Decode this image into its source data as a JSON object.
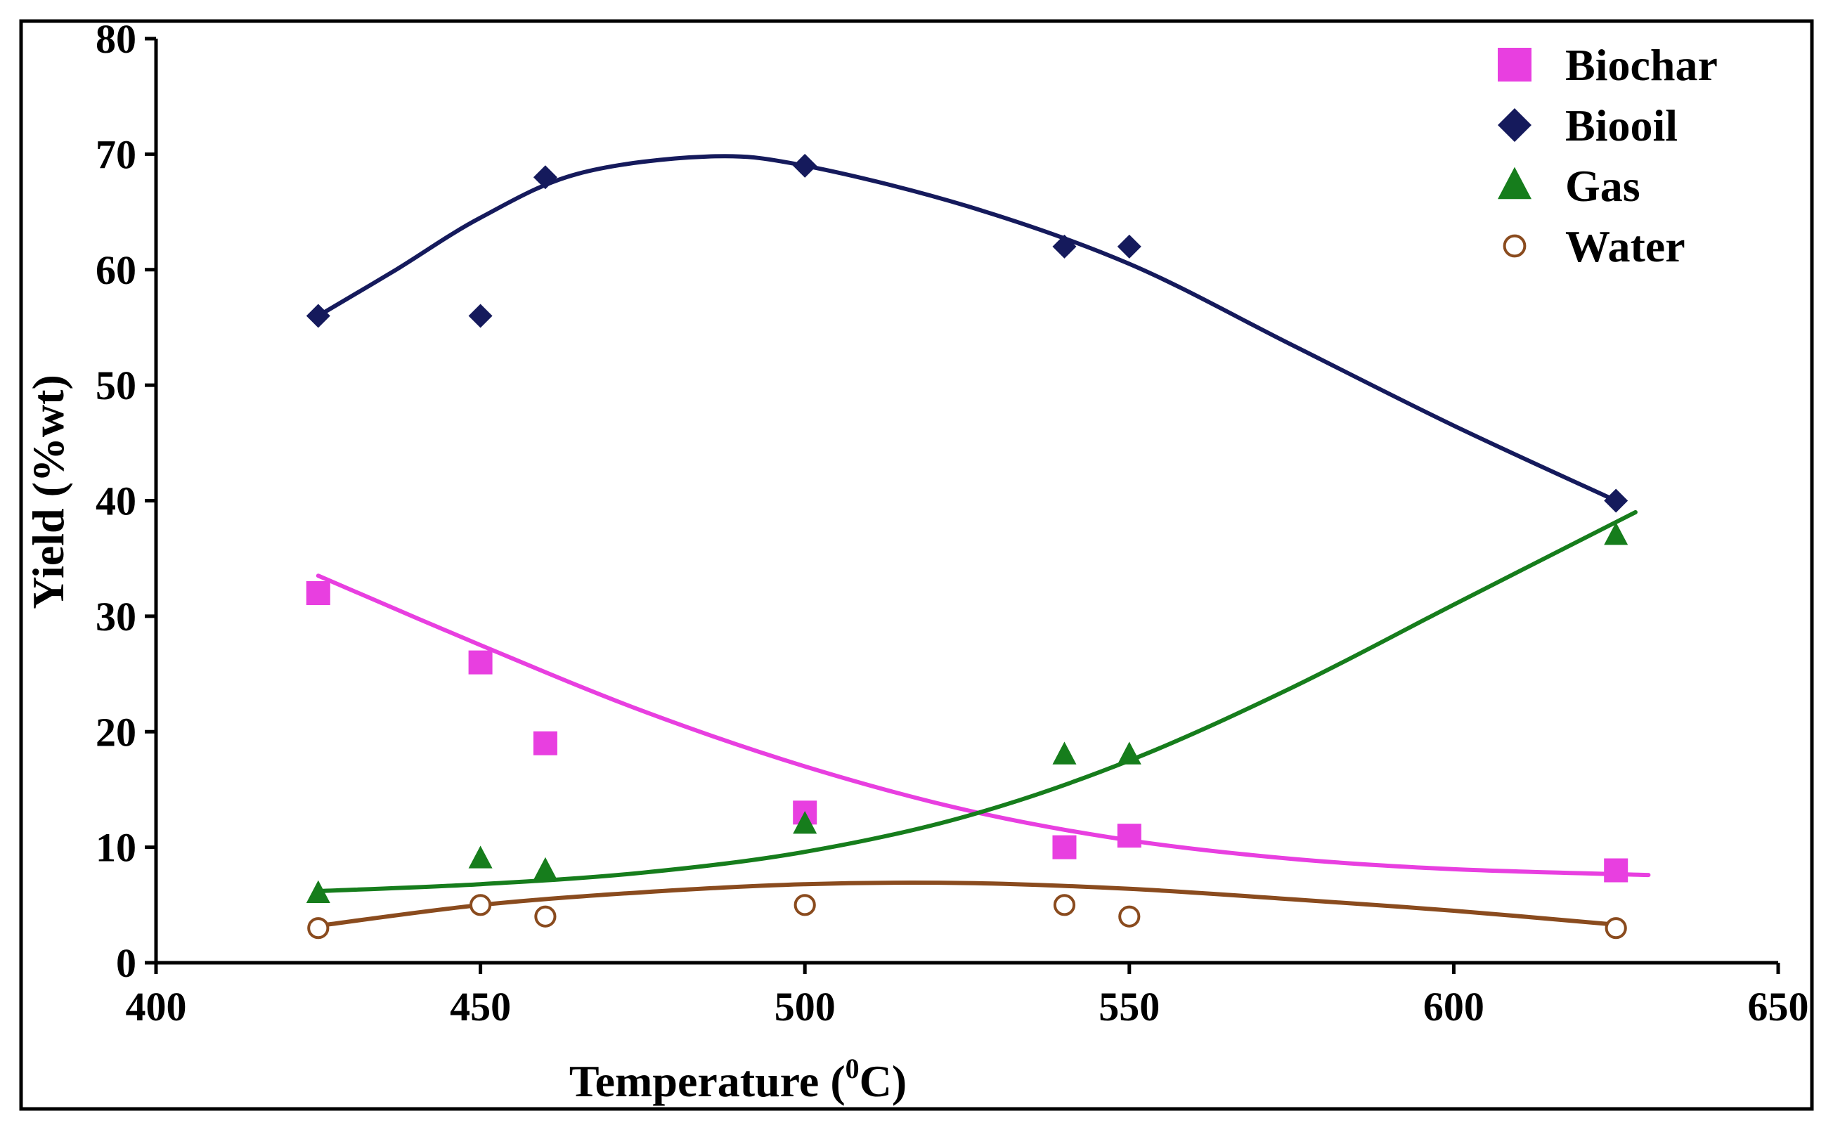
{
  "chart_data": {
    "type": "scatter",
    "xlabel_prefix": "Temperature (",
    "xlabel_sup": "0",
    "xlabel_suffix": "C)",
    "ylabel": "Yield (%wt)",
    "xlim": [
      400,
      650
    ],
    "ylim": [
      0,
      80
    ],
    "xticks": [
      400,
      450,
      500,
      550,
      600,
      650
    ],
    "yticks": [
      0,
      10,
      20,
      30,
      40,
      50,
      60,
      70,
      80
    ],
    "legend_position": "top-right",
    "series": [
      {
        "name": "Biochar",
        "marker": "square",
        "color": "#e83fe0",
        "points": [
          [
            425,
            32
          ],
          [
            450,
            26
          ],
          [
            460,
            19
          ],
          [
            500,
            13
          ],
          [
            540,
            10
          ],
          [
            550,
            11
          ],
          [
            625,
            8
          ]
        ],
        "trend": [
          [
            425,
            33.5
          ],
          [
            450,
            27.5
          ],
          [
            475,
            21.8
          ],
          [
            500,
            17
          ],
          [
            525,
            13.2
          ],
          [
            550,
            10.6
          ],
          [
            575,
            9
          ],
          [
            600,
            8.1
          ],
          [
            630,
            7.6
          ]
        ]
      },
      {
        "name": "Biooil",
        "marker": "diamond",
        "color": "#151a5c",
        "points": [
          [
            425,
            56
          ],
          [
            450,
            56
          ],
          [
            460,
            68
          ],
          [
            500,
            69
          ],
          [
            540,
            62
          ],
          [
            550,
            62
          ],
          [
            625,
            40
          ]
        ],
        "trend": [
          [
            425,
            56
          ],
          [
            437,
            60
          ],
          [
            450,
            64.5
          ],
          [
            465,
            68.3
          ],
          [
            485,
            69.8
          ],
          [
            500,
            69
          ],
          [
            525,
            65.5
          ],
          [
            550,
            60.5
          ],
          [
            575,
            53.5
          ],
          [
            600,
            46.5
          ],
          [
            625,
            40
          ]
        ]
      },
      {
        "name": "Gas",
        "marker": "triangle",
        "color": "#167d1c",
        "points": [
          [
            425,
            6
          ],
          [
            450,
            9
          ],
          [
            460,
            8
          ],
          [
            500,
            12
          ],
          [
            540,
            18
          ],
          [
            550,
            18
          ],
          [
            625,
            37
          ]
        ],
        "trend": [
          [
            425,
            6.2
          ],
          [
            450,
            6.8
          ],
          [
            475,
            7.8
          ],
          [
            500,
            9.6
          ],
          [
            525,
            12.7
          ],
          [
            550,
            17.5
          ],
          [
            575,
            23.8
          ],
          [
            600,
            31
          ],
          [
            628,
            39
          ]
        ]
      },
      {
        "name": "Water",
        "marker": "open-circle",
        "color": "#8a4b1e",
        "points": [
          [
            425,
            3
          ],
          [
            450,
            5
          ],
          [
            460,
            4
          ],
          [
            500,
            5
          ],
          [
            540,
            5
          ],
          [
            550,
            4
          ],
          [
            625,
            3
          ]
        ],
        "trend": [
          [
            425,
            3.2
          ],
          [
            450,
            5
          ],
          [
            475,
            6.1
          ],
          [
            500,
            6.8
          ],
          [
            525,
            6.9
          ],
          [
            550,
            6.4
          ],
          [
            575,
            5.5
          ],
          [
            600,
            4.5
          ],
          [
            625,
            3.3
          ]
        ]
      }
    ]
  }
}
